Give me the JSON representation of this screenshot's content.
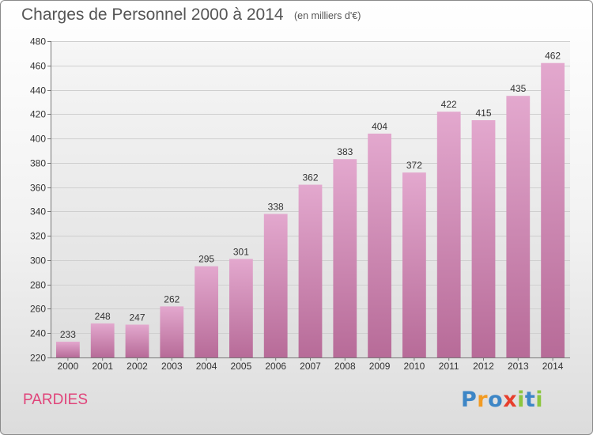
{
  "header": {
    "title": "Charges de Personnel 2000 à 2014",
    "subtitle": "(en milliers d'€)"
  },
  "footer": {
    "place": "PARDIES",
    "logo": "Proxiti"
  },
  "colors": {
    "bar_light": "#e3a8ce",
    "bar_dark": "#b76b98",
    "place_text": "#e0447a",
    "logo_letters": [
      "#3d86c6",
      "#f29b23",
      "#3d86c6",
      "#e73f2d",
      "#8cc63f",
      "#3d86c6",
      "#8cc63f"
    ]
  },
  "chart_data": {
    "type": "bar",
    "title": "Charges de Personnel 2000 à 2014",
    "subtitle": "(en milliers d'€)",
    "categories": [
      "2000",
      "2001",
      "2002",
      "2003",
      "2004",
      "2005",
      "2006",
      "2007",
      "2008",
      "2009",
      "2010",
      "2011",
      "2012",
      "2013",
      "2014"
    ],
    "values": [
      233,
      248,
      247,
      262,
      295,
      301,
      338,
      362,
      383,
      404,
      372,
      422,
      415,
      435,
      462
    ],
    "ylim": [
      220,
      480
    ],
    "yticks": [
      220,
      240,
      260,
      280,
      300,
      320,
      340,
      360,
      380,
      400,
      420,
      440,
      460,
      480
    ],
    "grid": true,
    "data_labels": true
  }
}
